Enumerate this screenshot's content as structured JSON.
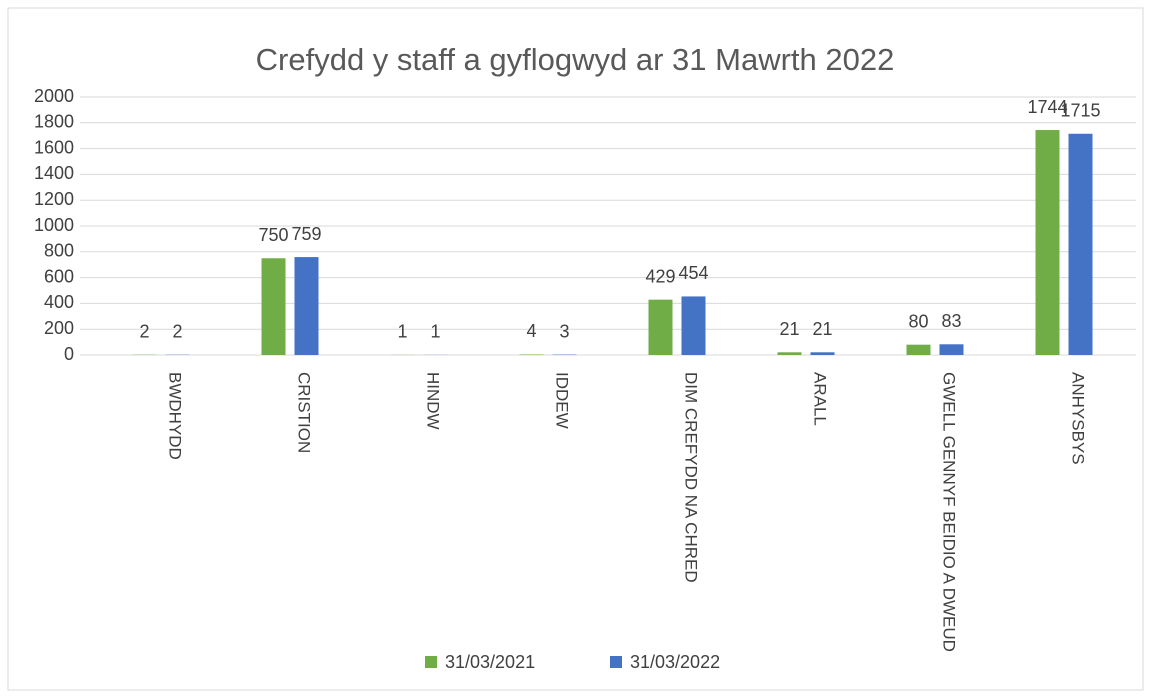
{
  "chart_data": {
    "type": "bar",
    "title": "Crefydd y staff a gyflogwyd ar 31 Mawrth 2022",
    "categories": [
      "BWDHYDD",
      "CRISTION",
      "HINDW",
      "IDDEW",
      "DIM CREFYDD NA CHRED",
      "ARALL",
      "GWELL GENNYF BEIDIO A DWEUD",
      "ANHYSBYS"
    ],
    "series": [
      {
        "name": "31/03/2021",
        "color": "#70ad47",
        "values": [
          2,
          750,
          1,
          4,
          429,
          21,
          80,
          1744
        ]
      },
      {
        "name": "31/03/2022",
        "color": "#4472c4",
        "values": [
          2,
          759,
          1,
          3,
          454,
          21,
          83,
          1715
        ]
      }
    ],
    "ylim": [
      0,
      2000
    ],
    "yticks": [
      0,
      200,
      400,
      600,
      800,
      1000,
      1200,
      1400,
      1600,
      1800,
      2000
    ],
    "grid": true,
    "legend": "bottom"
  }
}
